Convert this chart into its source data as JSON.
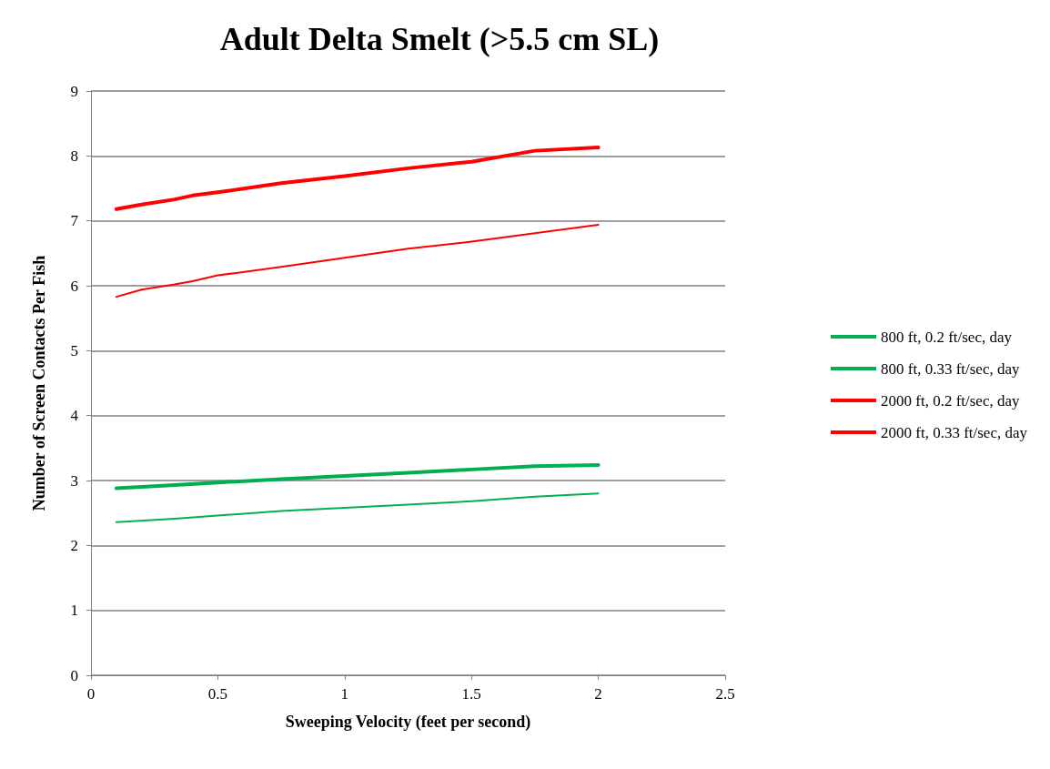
{
  "chart_data": {
    "type": "line",
    "title": "Adult Delta Smelt (>5.5 cm SL)",
    "xlabel": "Sweeping Velocity (feet per second)",
    "ylabel": "Number of Screen Contacts Per Fish",
    "xlim": [
      0,
      2.5
    ],
    "xticks": [
      0,
      0.5,
      1,
      1.5,
      2,
      2.5
    ],
    "ylim": [
      0,
      9
    ],
    "yticks": [
      0,
      1,
      2,
      3,
      4,
      5,
      6,
      7,
      8,
      9
    ],
    "grid": "y",
    "legend": "right",
    "marker": "none",
    "line_style": "solid",
    "series": [
      {
        "name": "800 ft, 0.2 ft/sec, day",
        "color": "#00b050",
        "x": [
          0.1,
          0.33,
          0.5,
          0.75,
          1,
          1.25,
          1.5,
          1.75,
          2
        ],
        "values": [
          2.36,
          2.41,
          2.46,
          2.53,
          2.58,
          2.63,
          2.68,
          2.75,
          2.8
        ]
      },
      {
        "name": "800 ft, 0.33 ft/sec, day",
        "color": "#00b050",
        "x": [
          0.1,
          0.33,
          0.5,
          0.75,
          1,
          1.25,
          1.5,
          1.75,
          2
        ],
        "values": [
          2.88,
          2.93,
          2.97,
          3.02,
          3.07,
          3.12,
          3.17,
          3.22,
          3.24
        ]
      },
      {
        "name": "2000 ft, 0.2 ft/sec, day",
        "color": "#ff0000",
        "x": [
          0.1,
          0.2,
          0.33,
          0.4,
          0.5,
          0.75,
          1,
          1.25,
          1.5,
          1.75,
          2
        ],
        "values": [
          5.83,
          5.94,
          6.02,
          6.07,
          6.16,
          6.29,
          6.43,
          6.57,
          6.68,
          6.81,
          6.94
        ]
      },
      {
        "name": "2000 ft, 0.33 ft/sec, day",
        "color": "#ff0000",
        "x": [
          0.1,
          0.2,
          0.33,
          0.4,
          0.5,
          0.75,
          1,
          1.25,
          1.5,
          1.75,
          2
        ],
        "values": [
          7.18,
          7.25,
          7.33,
          7.39,
          7.44,
          7.58,
          7.69,
          7.81,
          7.91,
          8.08,
          8.13
        ]
      }
    ]
  }
}
